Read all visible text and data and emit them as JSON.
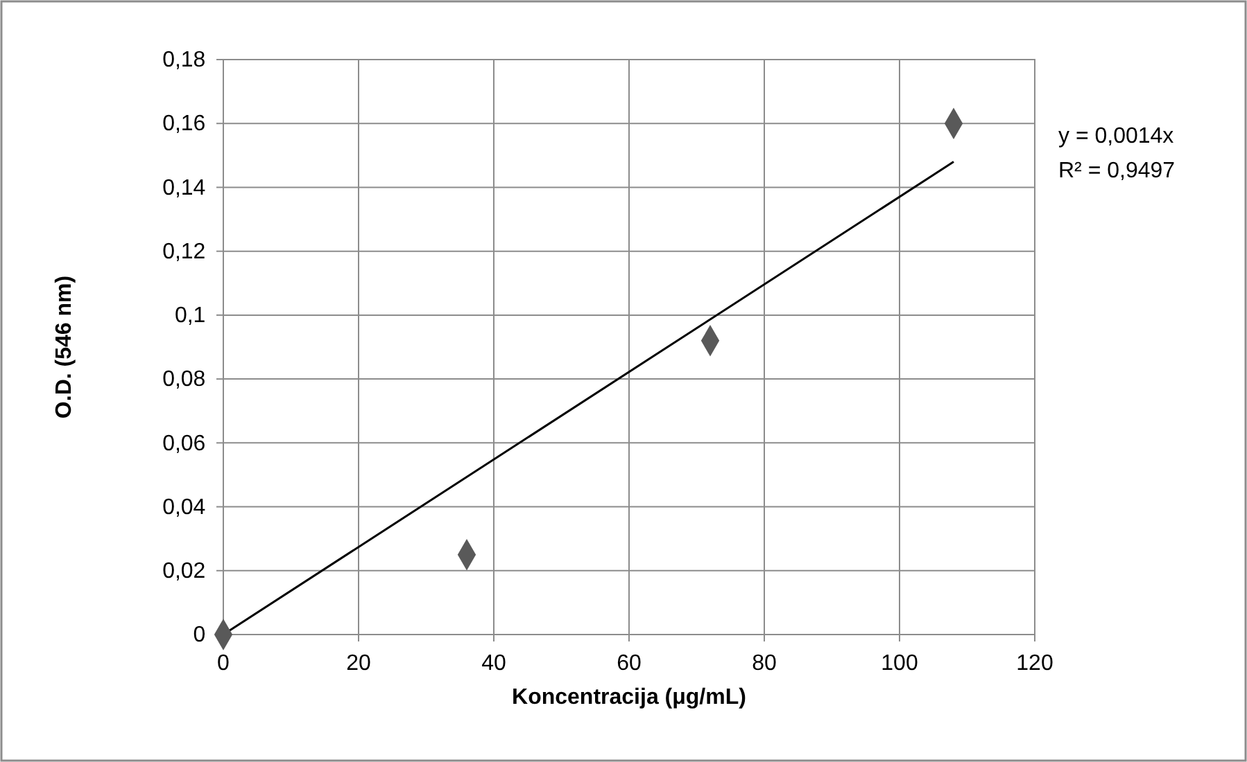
{
  "chart_data": {
    "type": "scatter",
    "xlabel": "Koncentracija (μg/mL)",
    "ylabel": "O.D. (546 nm)",
    "xlim": [
      0,
      120
    ],
    "xticks": [
      0,
      20,
      40,
      60,
      80,
      100,
      120
    ],
    "ylim": [
      0,
      0.18
    ],
    "yticks": [
      {
        "value": 0,
        "label": "0"
      },
      {
        "value": 0.02,
        "label": "0,02"
      },
      {
        "value": 0.04,
        "label": "0,04"
      },
      {
        "value": 0.06,
        "label": "0,06"
      },
      {
        "value": 0.08,
        "label": "0,08"
      },
      {
        "value": 0.1,
        "label": "0,1"
      },
      {
        "value": 0.12,
        "label": "0,12"
      },
      {
        "value": 0.14,
        "label": "0,14"
      },
      {
        "value": 0.16,
        "label": "0,16"
      },
      {
        "value": 0.18,
        "label": "0,18"
      }
    ],
    "grid": true,
    "series": [
      {
        "marker": "diamond",
        "color": "#595959",
        "x": [
          0,
          36,
          72,
          108
        ],
        "values": [
          0,
          0.025,
          0.092,
          0.16
        ]
      },
      {
        "type": "line",
        "marker": "none",
        "color": "#000000",
        "line_style": "solid",
        "x": [
          0,
          108
        ],
        "values": [
          0,
          0.148
        ]
      }
    ],
    "annotations": [
      "y = 0,0014x",
      "R² = 0,9497"
    ]
  }
}
